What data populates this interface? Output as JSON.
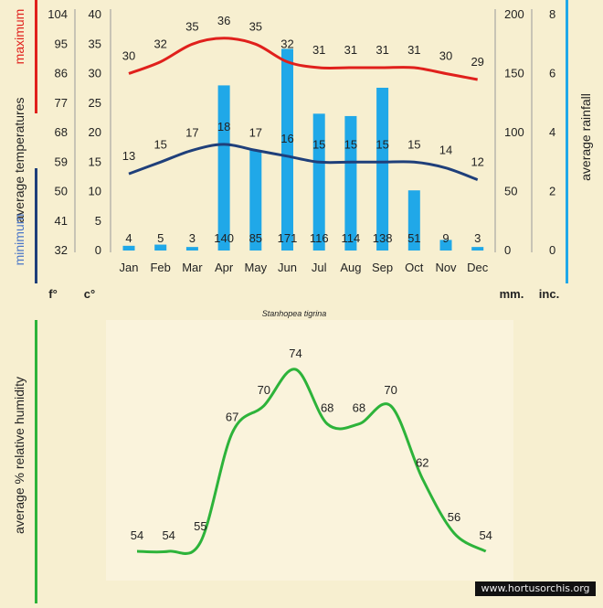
{
  "colors": {
    "background": "#f7efd0",
    "panel": "#faf3dc",
    "max_line": "#e0201c",
    "min_line": "#1f3f7a",
    "rain_bar": "#20a8e8",
    "humidity": "#2db33a",
    "axis_text": "#222222",
    "left_red_bar": "#e0201c",
    "left_blue_bar": "#1f3f7a",
    "right_bar": "#20a8e8",
    "humidity_bar": "#2db33a"
  },
  "legend": {
    "left_maximum": "maximum",
    "left_minimum": "minimum",
    "left_average_temperatures": "average temperatures",
    "right_average_rainfall": "average rainfall",
    "units_f": "f°",
    "units_c": "c°",
    "units_mm": "mm.",
    "units_inc": "inc.",
    "humidity_label": "average % relative humidity"
  },
  "species": "Stanhopea tigrina",
  "watermark": "www.hortusorchis.org",
  "chart_data": [
    {
      "type": "bar",
      "title": "",
      "categories": [
        "Jan",
        "Feb",
        "Mar",
        "Apr",
        "May",
        "Jun",
        "Jul",
        "Aug",
        "Sep",
        "Oct",
        "Nov",
        "Dec"
      ],
      "y_left_f_ticks": [
        "104",
        "95",
        "86",
        "77",
        "68",
        "59",
        "50",
        "41",
        "32"
      ],
      "y_left_c_ticks": [
        "40",
        "35",
        "30",
        "25",
        "20",
        "15",
        "10",
        "5",
        "0"
      ],
      "y_right_mm_ticks": [
        "200",
        "150",
        "100",
        "50",
        "0"
      ],
      "y_right_inc_ticks": [
        "8",
        "6",
        "4",
        "2",
        "0"
      ],
      "ylim_c": [
        0,
        40
      ],
      "ylim_mm": [
        0,
        200
      ],
      "series": [
        {
          "name": "maximum",
          "type": "line",
          "axis": "celsius",
          "values": [
            30,
            32,
            35,
            36,
            35,
            32,
            31,
            31,
            31,
            31,
            30,
            29
          ]
        },
        {
          "name": "minimum",
          "type": "line",
          "axis": "celsius",
          "values": [
            13,
            15,
            17,
            18,
            17,
            16,
            15,
            15,
            15,
            15,
            14,
            12
          ]
        },
        {
          "name": "average rainfall",
          "type": "bar",
          "axis": "mm",
          "values": [
            4,
            5,
            3,
            140,
            85,
            171,
            116,
            114,
            138,
            51,
            9,
            3
          ]
        }
      ],
      "grid": false
    },
    {
      "type": "line",
      "title": "",
      "categories": [
        "Jan",
        "Feb",
        "Mar",
        "Apr",
        "May",
        "Jun",
        "Jul",
        "Aug",
        "Sep",
        "Oct",
        "Nov",
        "Dec"
      ],
      "series": [
        {
          "name": "average % relative humidity",
          "values": [
            54,
            54,
            55,
            67,
            70,
            74,
            68,
            68,
            70,
            62,
            56,
            54
          ]
        }
      ]
    }
  ]
}
